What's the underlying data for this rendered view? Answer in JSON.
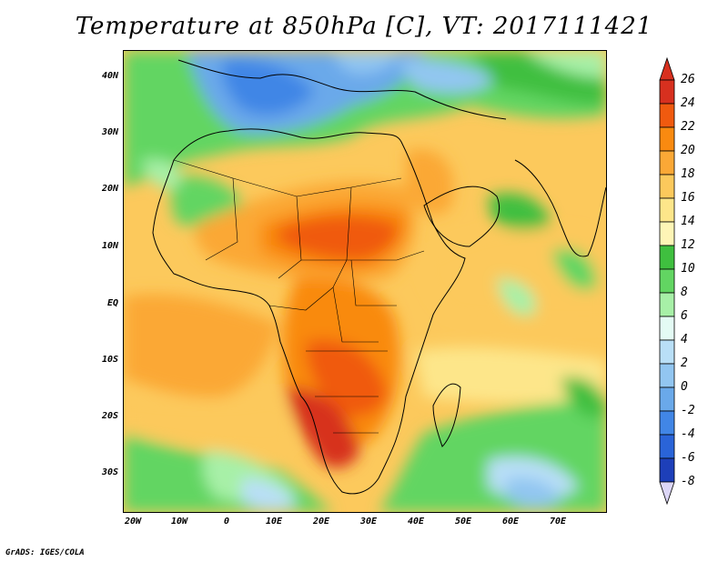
{
  "title": "Temperature at 850hPa [C], VT: 2017111421",
  "footer": "GrADS: IGES/COLA",
  "lat_ticks": [
    "40N",
    "30N",
    "20N",
    "10N",
    "EQ",
    "10S",
    "20S",
    "30S"
  ],
  "lon_ticks": [
    "20W",
    "10W",
    "0",
    "10E",
    "20E",
    "30E",
    "40E",
    "50E",
    "60E",
    "70E"
  ],
  "colorbar": {
    "labels": [
      "26",
      "24",
      "22",
      "20",
      "18",
      "16",
      "14",
      "12",
      "10",
      "8",
      "6",
      "4",
      "2",
      "0",
      "-2",
      "-4",
      "-6",
      "-8"
    ],
    "colors": [
      "#d7301f",
      "#f05a0f",
      "#f98a10",
      "#fba836",
      "#fcc95c",
      "#fde68a",
      "#fef5b6",
      "#3fbf3f",
      "#62d562",
      "#a7f0a7",
      "#e4fbf4",
      "#b9dff7",
      "#92c6f1",
      "#6aa9ea",
      "#4186e6",
      "#2a64d8",
      "#1d3fb9",
      "#0b1d84"
    ]
  }
}
